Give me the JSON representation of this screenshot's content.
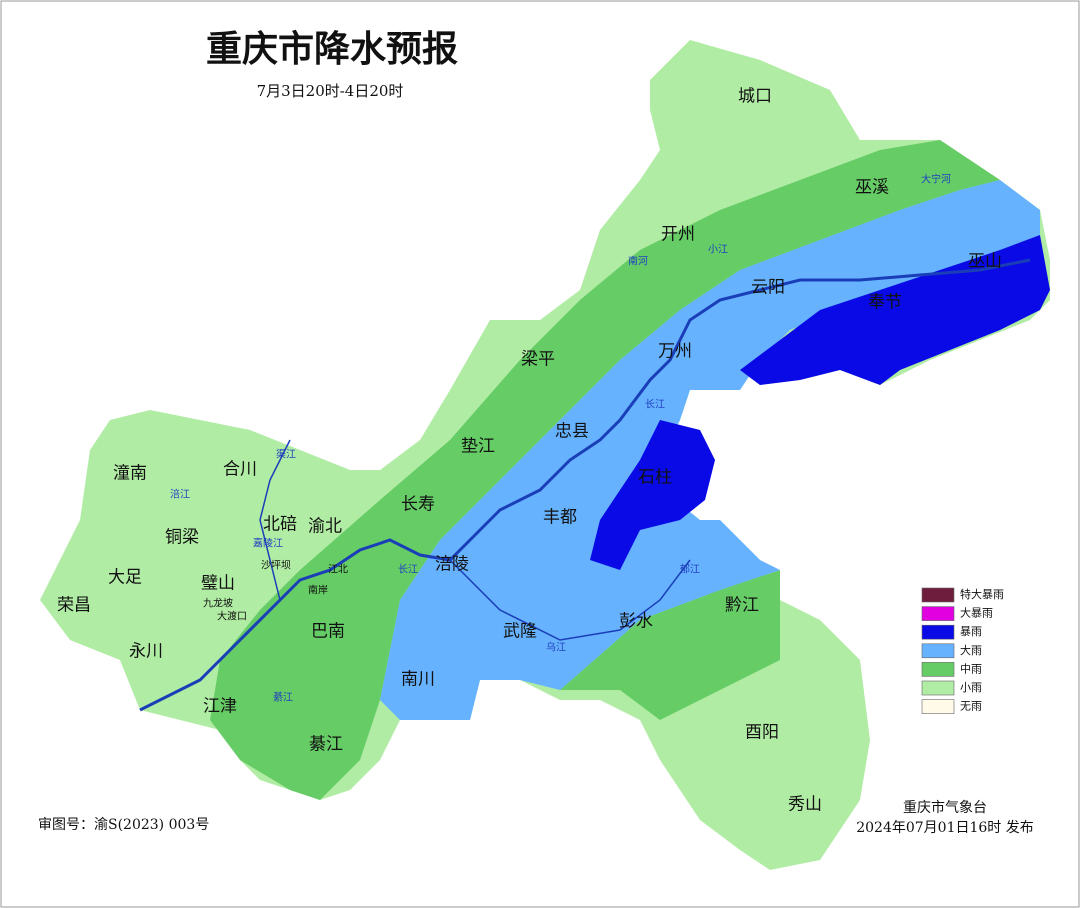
{
  "title": "重庆市降水预报",
  "subtitle": "7月3日20时-4日20时",
  "districts": [
    "城口",
    "巫溪",
    "开州",
    "云阳",
    "巫山",
    "奉节",
    "梁平",
    "万州",
    "忠县",
    "垫江",
    "石柱",
    "丰都",
    "长寿",
    "渝北",
    "北碚",
    "合川",
    "潼南",
    "铜梁",
    "大足",
    "璧山",
    "荣昌",
    "永川",
    "江津",
    "巴南",
    "涪陵",
    "武隆",
    "彭水",
    "黔江",
    "南川",
    "綦江",
    "酉阳",
    "秀山",
    "沙坪坝",
    "九龙坡",
    "大渡口",
    "江北",
    "南岸"
  ],
  "rivers": [
    "嘉陵江",
    "涪江",
    "渠江",
    "南河",
    "小江",
    "大宁河",
    "长江",
    "长江",
    "乌江",
    "郁江",
    "綦江"
  ],
  "legend": [
    {
      "label": "特大暴雨",
      "color": "#6e1e3c"
    },
    {
      "label": "大暴雨",
      "color": "#e000e0"
    },
    {
      "label": "暴雨",
      "color": "#0a0ae6"
    },
    {
      "label": "大雨",
      "color": "#66b2ff"
    },
    {
      "label": "中雨",
      "color": "#66cc66"
    },
    {
      "label": "小雨",
      "color": "#b0eca4"
    },
    {
      "label": "无雨",
      "color": "#fffbe8"
    }
  ],
  "approval": "审图号：渝S(2023) 003号",
  "issuer": "重庆市气象台",
  "issue_time": "2024年07月01日16时 发布"
}
